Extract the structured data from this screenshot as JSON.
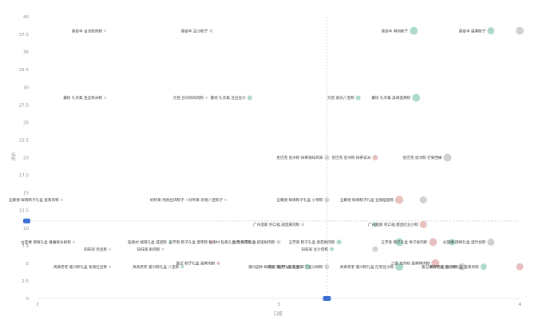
{
  "colors": {
    "grey": "#c9c9c9",
    "teal": "#9fd4c4",
    "pink": "#e5b5b5",
    "marker": "#3b6fd1",
    "guide": "#bfbfbf"
  },
  "chart_data": {
    "type": "scatter",
    "xlabel": "口感",
    "ylabel": "评价",
    "xlim": [
      2,
      4
    ],
    "ylim": [
      0,
      40
    ],
    "x_ticks": [
      {
        "v": 2,
        "label": "2"
      },
      {
        "v": 3,
        "label": "3"
      },
      {
        "v": 4,
        "label": "4"
      }
    ],
    "y_ticks": [
      {
        "v": 0,
        "label": "0"
      },
      {
        "v": 2.5,
        "label": "2.5"
      },
      {
        "v": 5,
        "label": "5"
      },
      {
        "v": 7.5,
        "label": "7.5"
      },
      {
        "v": 10,
        "label": "10"
      },
      {
        "v": 12.5,
        "label": "12.5"
      },
      {
        "v": 15,
        "label": "15"
      },
      {
        "v": 17.5,
        "label": "17.5"
      },
      {
        "v": 20,
        "label": "20"
      },
      {
        "v": 22.5,
        "label": "22.5"
      },
      {
        "v": 25,
        "label": "25"
      },
      {
        "v": 27.5,
        "label": "27.5"
      },
      {
        "v": 30,
        "label": "30"
      },
      {
        "v": 32.5,
        "label": "32.5"
      },
      {
        "v": 35,
        "label": "35"
      },
      {
        "v": 37.5,
        "label": "37.5"
      },
      {
        "v": 40,
        "label": "40"
      }
    ],
    "ref_x": 3.2,
    "ref_y": 11,
    "points": [
      {
        "x": 2.28,
        "y": 38.0,
        "label": "鼎泰丰 台湾粽肉粽",
        "color": "grey",
        "r": 1.5
      },
      {
        "x": 2.72,
        "y": 38.0,
        "label": "鼎泰丰 豆沙粽子",
        "color": "grey",
        "r": 2.2
      },
      {
        "x": 3.56,
        "y": 38.0,
        "label": "鼎泰丰 鲜肉粽子",
        "color": "teal",
        "r": 5
      },
      {
        "x": 3.88,
        "y": 38.0,
        "label": "鼎泰丰 蛋黄粽子",
        "color": "teal",
        "r": 4.5
      },
      {
        "x": 4.0,
        "y": 38.0,
        "label": "",
        "color": "grey",
        "r": 5
      },
      {
        "x": 2.28,
        "y": 28.5,
        "label": "蕙桢 礼享集 鱼丝粽米粽",
        "color": "grey",
        "r": 1.5
      },
      {
        "x": 2.7,
        "y": 28.5,
        "label": "元祖 台湾风味肉粽",
        "color": "grey",
        "r": 1.5
      },
      {
        "x": 2.88,
        "y": 28.5,
        "label": "蕙桢 礼享集 豆丝豆沙",
        "color": "teal",
        "r": 3
      },
      {
        "x": 3.33,
        "y": 28.5,
        "label": "元祖 富光八宝粽",
        "color": "teal",
        "r": 3
      },
      {
        "x": 3.57,
        "y": 28.5,
        "label": "蕙桢 礼享集 黑胡蛋黄粽",
        "color": "teal",
        "r": 5
      },
      {
        "x": 3.2,
        "y": 20.0,
        "label": "星巴克 星冰粽 抹茶咖啡风味",
        "color": "grey",
        "r": 3
      },
      {
        "x": 3.4,
        "y": 20.0,
        "label": "星巴克 星冰粽 抹茶玄米",
        "color": "pink",
        "r": 3.5
      },
      {
        "x": 3.7,
        "y": 20.0,
        "label": "星巴克 星冰粽 芒果西柚",
        "color": "grey",
        "r": 5
      },
      {
        "x": 2.1,
        "y": 14.0,
        "label": "全聚德 鲜情粽子礼盒 蛋黄肉粽",
        "color": "grey",
        "r": 1.5
      },
      {
        "x": 2.62,
        "y": 14.0,
        "label": "好利来 纯香豆肉粽子",
        "color": "grey",
        "r": 1.5
      },
      {
        "x": 2.78,
        "y": 14.0,
        "label": "好利来 新香八宝粽子",
        "color": "grey",
        "r": 1.5
      },
      {
        "x": 3.2,
        "y": 14.0,
        "label": "全聚德 鲜情粽子礼盒 小枣粽",
        "color": "grey",
        "r": 3
      },
      {
        "x": 3.5,
        "y": 14.0,
        "label": "全聚德 鲜情粽子礼盒 豆腐脑蛋粽",
        "color": "pink",
        "r": 5
      },
      {
        "x": 3.6,
        "y": 14.0,
        "label": "",
        "color": "grey",
        "r": 4.5
      },
      {
        "x": 3.1,
        "y": 10.5,
        "label": "广州酒家 利口福 咸蛋黄肉粽",
        "color": "grey",
        "r": 2
      },
      {
        "x": 3.4,
        "y": 10.5,
        "label": "",
        "color": "teal",
        "r": 3
      },
      {
        "x": 3.6,
        "y": 10.5,
        "label": "广州酒家 利口福 甜蛋红豆沙粽",
        "color": "pink",
        "r": 4.5
      },
      {
        "x": 2.15,
        "y": 8.0,
        "label": "古茗楼 御情礼盒 番薯栗米鲜粽",
        "color": "grey",
        "r": 1.5
      },
      {
        "x": 2.55,
        "y": 8.0,
        "label": "稻香村 端阳礼盒 咸蛋粽",
        "color": "teal",
        "r": 2.2
      },
      {
        "x": 2.72,
        "y": 8.0,
        "label": "五芳斋 粽子礼盒 蜜枣粽",
        "color": "pink",
        "r": 2.2
      },
      {
        "x": 2.9,
        "y": 8.0,
        "label": "稻香村 稻香礼盒 纯沙肉粽",
        "color": "grey",
        "r": 2
      },
      {
        "x": 3.0,
        "y": 8.0,
        "label": "远芳 粽子礼盒 咸蛋鲜肉粽",
        "color": "grey",
        "r": 2.5
      },
      {
        "x": 3.25,
        "y": 8.0,
        "label": "五芳斋 粽子礼盒 香菇鲜肉粽",
        "color": "teal",
        "r": 3
      },
      {
        "x": 3.5,
        "y": 8.0,
        "label": "",
        "color": "teal",
        "r": 5
      },
      {
        "x": 3.64,
        "y": 8.0,
        "label": "五芳斋 粽子礼盒 栗子鲜肉粽",
        "color": "pink",
        "r": 5
      },
      {
        "x": 3.72,
        "y": 8.0,
        "label": "",
        "color": "teal",
        "r": 4
      },
      {
        "x": 3.88,
        "y": 8.0,
        "label": "古茗楼 御情礼盒 蛋叶豆粽",
        "color": "grey",
        "r": 4.5
      },
      {
        "x": 2.3,
        "y": 7.0,
        "label": "知味观 赤豆粽",
        "color": "grey",
        "r": 1.5
      },
      {
        "x": 2.52,
        "y": 7.0,
        "label": "知味观 鲜肉粽",
        "color": "grey",
        "r": 1.5
      },
      {
        "x": 3.22,
        "y": 7.0,
        "label": "知味观 豆沙肉粽",
        "color": "teal",
        "r": 2.5
      },
      {
        "x": 3.4,
        "y": 7.0,
        "label": "",
        "color": "grey",
        "r": 3.5
      },
      {
        "x": 2.3,
        "y": 4.5,
        "label": "真真老老 嘉兴粽礼盒 松香红豆粽",
        "color": "grey",
        "r": 1.5
      },
      {
        "x": 2.6,
        "y": 4.5,
        "label": "真真老老 嘉兴粽礼盒 八宝粽",
        "color": "teal",
        "r": 2
      },
      {
        "x": 2.75,
        "y": 5.0,
        "label": "嘉记 粽子礼盒 蛋黄肉粽",
        "color": "pink",
        "r": 2.2
      },
      {
        "x": 3.0,
        "y": 4.5,
        "label": "潘州园林 鲜肉粽",
        "color": "grey",
        "r": 2.5
      },
      {
        "x": 3.12,
        "y": 4.5,
        "label": "嘉记 粽子礼盒 蛋黄粽",
        "color": "teal",
        "r": 3.5
      },
      {
        "x": 3.2,
        "y": 4.5,
        "label": "远芳 V鲜礼盒 三丁豆沙鲜粽",
        "color": "grey",
        "r": 3
      },
      {
        "x": 3.5,
        "y": 4.5,
        "label": "真真老老 嘉兴粽礼盒 红枣豆沙粽",
        "color": "teal",
        "r": 5
      },
      {
        "x": 3.65,
        "y": 5.0,
        "label": "三里 龙舟粽 蛋黄鲜肉粽",
        "color": "pink",
        "r": 5
      },
      {
        "x": 3.76,
        "y": 4.5,
        "label": "嘉记 粽子礼盒 豆沙粽",
        "color": "grey",
        "r": 4.5
      },
      {
        "x": 3.85,
        "y": 4.5,
        "label": "真真老老 嘉兴粽礼盒 蛋黄肉粽",
        "color": "teal",
        "r": 4
      },
      {
        "x": 4.0,
        "y": 4.5,
        "label": "",
        "color": "pink",
        "r": 4.5
      }
    ]
  }
}
